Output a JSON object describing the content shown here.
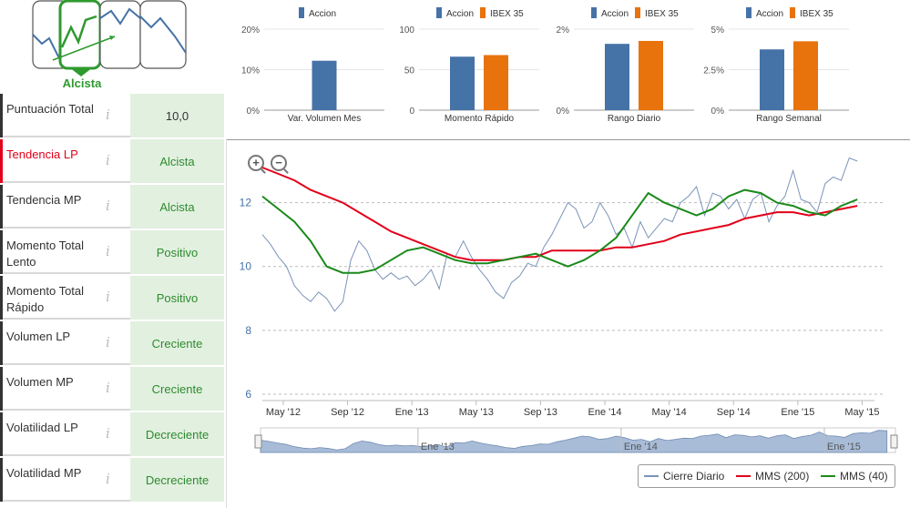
{
  "trend_indicator": {
    "label": "Alcista",
    "icons": [
      "trend-bearish-icon",
      "trend-bullish-icon",
      "trend-sideways-icon",
      "trend-bearish-2-icon"
    ],
    "active_color": "#2e9a2e"
  },
  "panels": [
    {
      "name": "Puntuación Total",
      "value": "10,0"
    },
    {
      "name": "Tendencia LP",
      "value": "Alcista"
    },
    {
      "name": "Tendencia MP",
      "value": "Alcista"
    },
    {
      "name": "Momento Total Lento",
      "value": "Positivo"
    },
    {
      "name": "Momento Total Rápido",
      "value": "Positivo"
    },
    {
      "name": "Volumen LP",
      "value": "Creciente"
    },
    {
      "name": "Volumen MP",
      "value": "Creciente"
    },
    {
      "name": "Volatilidad LP",
      "value": "Decreciente"
    },
    {
      "name": "Volatilidad MP",
      "value": "Decreciente"
    }
  ],
  "info_glyph": "i",
  "zoom": {
    "in": "+",
    "out": "−"
  },
  "colors": {
    "accion": "#4572a7",
    "ibex": "#e8730c",
    "cierre": "#7a93b8",
    "mms200": "#e2001a",
    "mms40": "#1a8a1a",
    "highlight_red": "#e2001a",
    "panel_green": "#e2f0e0"
  },
  "chart_data": [
    {
      "type": "bar",
      "title": "Var. Volumen Mes",
      "legend": [
        "Accion"
      ],
      "series": [
        {
          "name": "Accion",
          "values": [
            12.2
          ]
        }
      ],
      "yticks": [
        "20%",
        "10%",
        "0%"
      ],
      "ylim": [
        0,
        20
      ]
    },
    {
      "type": "bar",
      "title": "Momento Rápido",
      "legend": [
        "Accion",
        "IBEX 35"
      ],
      "series": [
        {
          "name": "Accion",
          "values": [
            66
          ]
        },
        {
          "name": "IBEX 35",
          "values": [
            68
          ]
        }
      ],
      "yticks": [
        "100",
        "50",
        "0"
      ],
      "ylim": [
        0,
        100
      ]
    },
    {
      "type": "bar",
      "title": "Rango Diario",
      "legend": [
        "Accion",
        "IBEX 35"
      ],
      "series": [
        {
          "name": "Accion",
          "values": [
            1.8
          ]
        },
        {
          "name": "IBEX 35",
          "values": [
            1.88
          ]
        }
      ],
      "yticks": [
        "2%",
        "0%"
      ],
      "ylim": [
        0,
        2.2
      ]
    },
    {
      "type": "bar",
      "title": "Rango Semanal",
      "legend": [
        "Accion",
        "IBEX 35"
      ],
      "series": [
        {
          "name": "Accion",
          "values": [
            3.75
          ]
        },
        {
          "name": "IBEX 35",
          "values": [
            4.25
          ]
        }
      ],
      "yticks": [
        "5%",
        "2.5%",
        "0%"
      ],
      "ylim": [
        0,
        5
      ]
    },
    {
      "type": "line",
      "title": "",
      "yticks": [
        "12",
        "10",
        "8",
        "6"
      ],
      "ylim": [
        5.8,
        13.5
      ],
      "xlim": [
        0,
        37.5
      ],
      "xticks": [
        {
          "x": 1.3,
          "label": "May '12"
        },
        {
          "x": 5.3,
          "label": "Sep '12"
        },
        {
          "x": 9.3,
          "label": "Ene '13"
        },
        {
          "x": 13.3,
          "label": "May '13"
        },
        {
          "x": 17.3,
          "label": "Sep '13"
        },
        {
          "x": 21.3,
          "label": "Ene '14"
        },
        {
          "x": 25.3,
          "label": "May '14"
        },
        {
          "x": 29.3,
          "label": "Sep '14"
        },
        {
          "x": 33.3,
          "label": "Ene '15"
        },
        {
          "x": 37.3,
          "label": "May '15"
        }
      ],
      "legend": [
        "Cierre Diario",
        "MMS (200)",
        "MMS (40)"
      ],
      "series": [
        {
          "name": "Cierre Diario",
          "x": [
            0,
            0.5,
            1,
            1.5,
            2,
            2.5,
            3,
            3.5,
            4,
            4.5,
            5,
            5.5,
            6,
            6.5,
            7,
            7.5,
            8,
            8.5,
            9,
            9.5,
            10,
            10.5,
            11,
            11.5,
            12,
            12.5,
            13,
            13.5,
            14,
            14.5,
            15,
            15.5,
            16,
            16.5,
            17,
            17.5,
            18,
            18.5,
            19,
            19.5,
            20,
            20.5,
            21,
            21.5,
            22,
            22.5,
            23,
            23.5,
            24,
            24.5,
            25,
            25.5,
            26,
            26.5,
            27,
            27.5,
            28,
            28.5,
            29,
            29.5,
            30,
            30.5,
            31,
            31.5,
            32,
            32.5,
            33,
            33.5,
            34,
            34.5,
            35,
            35.5,
            36,
            36.5,
            37
          ],
          "values": [
            11.0,
            10.7,
            10.3,
            10.0,
            9.4,
            9.1,
            8.9,
            9.2,
            9.0,
            8.6,
            8.9,
            10.2,
            10.8,
            10.5,
            9.9,
            9.6,
            9.8,
            9.6,
            9.7,
            9.4,
            9.6,
            9.9,
            9.3,
            10.4,
            10.3,
            10.8,
            10.3,
            9.9,
            9.6,
            9.2,
            9.0,
            9.5,
            9.7,
            10.1,
            10.0,
            10.6,
            11.0,
            11.5,
            12.0,
            11.8,
            11.2,
            11.4,
            12.0,
            11.6,
            11.0,
            11.2,
            10.6,
            11.4,
            10.9,
            11.2,
            11.5,
            11.4,
            12.0,
            12.2,
            12.5,
            11.6,
            12.3,
            12.2,
            11.8,
            12.1,
            11.5,
            12.1,
            12.3,
            11.4,
            11.9,
            12.2,
            13.0,
            12.1,
            12.0,
            11.7,
            12.6,
            12.8,
            12.7,
            13.4,
            13.3
          ]
        },
        {
          "name": "MMS (200)",
          "x": [
            0,
            1,
            2,
            3,
            4,
            5,
            6,
            7,
            8,
            9,
            10,
            11,
            12,
            13,
            14,
            15,
            16,
            17,
            18,
            19,
            20,
            21,
            22,
            23,
            24,
            25,
            26,
            27,
            28,
            29,
            30,
            31,
            32,
            33,
            34,
            35,
            36,
            37
          ],
          "values": [
            13.1,
            12.9,
            12.7,
            12.4,
            12.2,
            12.0,
            11.7,
            11.4,
            11.1,
            10.9,
            10.7,
            10.5,
            10.3,
            10.2,
            10.2,
            10.2,
            10.3,
            10.3,
            10.5,
            10.5,
            10.5,
            10.5,
            10.6,
            10.6,
            10.7,
            10.8,
            11.0,
            11.1,
            11.2,
            11.3,
            11.5,
            11.6,
            11.7,
            11.7,
            11.6,
            11.7,
            11.8,
            11.9
          ]
        },
        {
          "name": "MMS (40)",
          "x": [
            0,
            1,
            2,
            3,
            4,
            5,
            6,
            7,
            8,
            9,
            10,
            11,
            12,
            13,
            14,
            15,
            16,
            17,
            18,
            19,
            20,
            21,
            22,
            23,
            24,
            25,
            26,
            27,
            28,
            29,
            30,
            31,
            32,
            33,
            34,
            35,
            36,
            37
          ],
          "values": [
            12.2,
            11.8,
            11.4,
            10.8,
            10.0,
            9.8,
            9.8,
            9.9,
            10.2,
            10.5,
            10.6,
            10.4,
            10.2,
            10.1,
            10.1,
            10.2,
            10.3,
            10.4,
            10.2,
            10.0,
            10.2,
            10.5,
            10.9,
            11.6,
            12.3,
            12.0,
            11.8,
            11.6,
            11.8,
            12.2,
            12.4,
            12.3,
            12.0,
            11.9,
            11.7,
            11.6,
            11.9,
            12.1
          ]
        }
      ]
    },
    {
      "type": "area",
      "title": "navigator",
      "xticks": [
        {
          "x": 9.3,
          "label": "Ene '13"
        },
        {
          "x": 21.3,
          "label": "Ene '14"
        },
        {
          "x": 33.3,
          "label": "Ene '15"
        }
      ],
      "xlim": [
        0,
        37.5
      ]
    }
  ]
}
